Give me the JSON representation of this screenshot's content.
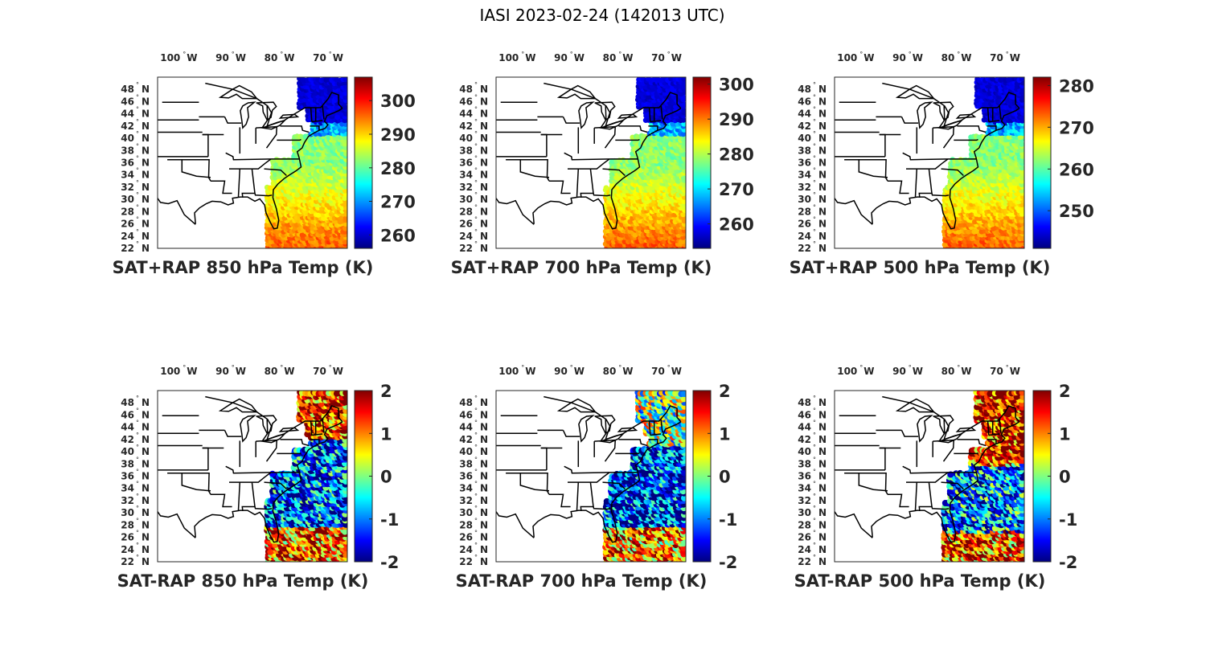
{
  "figure_title": "IASI 2023-02-24 (142013 UTC)",
  "lon_ticks": [
    "100",
    "90",
    "80",
    "70"
  ],
  "lon_suffix": "W",
  "lat_ticks": [
    "22",
    "24",
    "26",
    "28",
    "30",
    "32",
    "34",
    "36",
    "38",
    "40",
    "42",
    "44",
    "46",
    "48"
  ],
  "lat_suffix": "N",
  "panels": [
    {
      "title": "SAT+RAP 850 hPa Temp (K)",
      "colorbar": {
        "min": 256,
        "max": 307,
        "ticks": [
          "260",
          "270",
          "280",
          "290",
          "300"
        ],
        "values": [
          260,
          270,
          280,
          290,
          300
        ]
      }
    },
    {
      "title": "SAT+RAP 700 hPa Temp (K)",
      "colorbar": {
        "min": 253,
        "max": 302,
        "ticks": [
          "260",
          "270",
          "280",
          "290",
          "300"
        ],
        "values": [
          260,
          270,
          280,
          290,
          300
        ]
      }
    },
    {
      "title": "SAT+RAP 500 hPa Temp (K)",
      "colorbar": {
        "min": 241,
        "max": 282,
        "ticks": [
          "250",
          "260",
          "270",
          "280"
        ],
        "values": [
          250,
          260,
          270,
          280
        ]
      }
    },
    {
      "title": "SAT-RAP 850 hPa Temp (K)",
      "colorbar": {
        "min": -2,
        "max": 2,
        "ticks": [
          "-2",
          "-1",
          "0",
          "1",
          "2"
        ],
        "values": [
          -2,
          -1,
          0,
          1,
          2
        ]
      }
    },
    {
      "title": "SAT-RAP 700 hPa Temp (K)",
      "colorbar": {
        "min": -2,
        "max": 2,
        "ticks": [
          "-2",
          "-1",
          "0",
          "1",
          "2"
        ],
        "values": [
          -2,
          -1,
          0,
          1,
          2
        ]
      }
    },
    {
      "title": "SAT-RAP 500 hPa Temp (K)",
      "colorbar": {
        "min": -2,
        "max": 2,
        "ticks": [
          "-2",
          "-1",
          "0",
          "1",
          "2"
        ],
        "values": [
          -2,
          -1,
          0,
          1,
          2
        ]
      }
    }
  ],
  "colormap": "jet",
  "colors": {
    "outline": "#000000",
    "text": "#262626",
    "frame": "#262626"
  }
}
